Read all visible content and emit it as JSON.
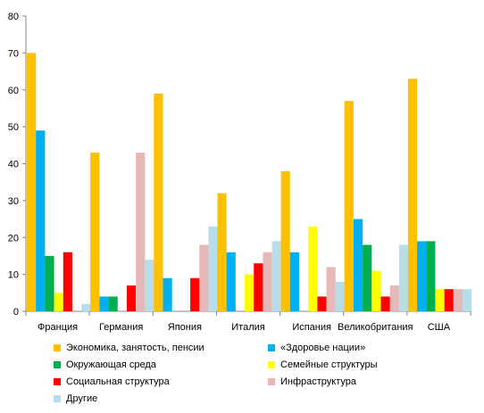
{
  "chart_data": {
    "type": "bar",
    "categories": [
      "Франция",
      "Германия",
      "Япония",
      "Италия",
      "Испания",
      "Великобритания",
      "США"
    ],
    "ylim": [
      0,
      80
    ],
    "yticks": [
      0,
      10,
      20,
      30,
      40,
      50,
      60,
      70,
      80
    ],
    "grid": false,
    "legend_position": "bottom",
    "series": [
      {
        "name": "Экономика, занятость, пенсии",
        "color": "#FFC000",
        "values": [
          70,
          43,
          59,
          32,
          38,
          57,
          63
        ]
      },
      {
        "name": "«Здоровье нации»",
        "color": "#00B0F0",
        "values": [
          49,
          4,
          9,
          16,
          16,
          25,
          19
        ]
      },
      {
        "name": "Окружающая среда",
        "color": "#00B050",
        "values": [
          15,
          4,
          0,
          0,
          0,
          18,
          19
        ]
      },
      {
        "name": "Семейные структуры",
        "color": "#FFFF00",
        "values": [
          5,
          0,
          0,
          10,
          23,
          11,
          6
        ]
      },
      {
        "name": "Социальная структура",
        "color": "#FF0000",
        "values": [
          16,
          7,
          9,
          13,
          4,
          4,
          6
        ]
      },
      {
        "name": "Инфраструктура",
        "color": "#E6B9B8",
        "values": [
          0,
          43,
          18,
          16,
          12,
          7,
          6
        ]
      },
      {
        "name": "Другие",
        "color": "#B7DEE8",
        "values": [
          2,
          14,
          23,
          19,
          8,
          18,
          6
        ]
      }
    ]
  }
}
